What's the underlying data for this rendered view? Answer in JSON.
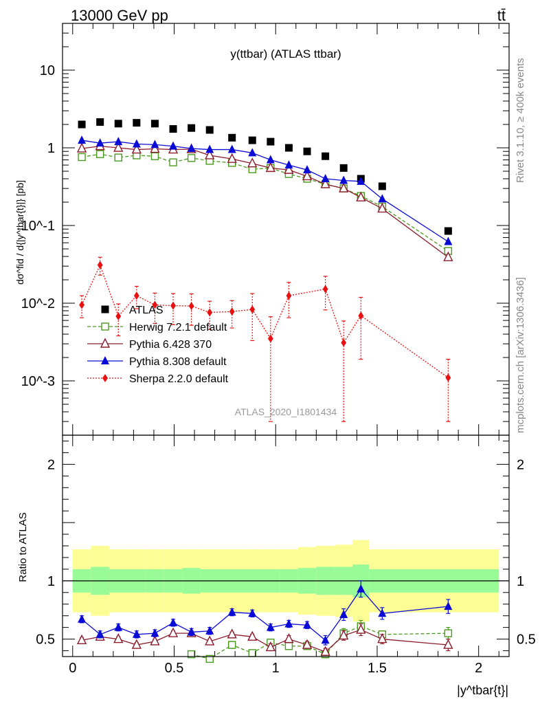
{
  "header": {
    "energy_label": "13000 GeV pp",
    "process_label": "tt̄",
    "side_text_top": "Rivet 3.1.10, ≥ 400k events",
    "side_text_bottom": "mcplots.cern.ch [arXiv:1306.3436]"
  },
  "chart_data": [
    {
      "type": "scatter",
      "panel": "main",
      "title": "y(ttbar) (ATLAS ttbar)",
      "ylabel": "dσ^fid / d{|y^tbar{t}|} [pb]",
      "xlabel": "",
      "yscale": "log",
      "ylim": [
        0.0002,
        40
      ],
      "xlim": [
        -0.05,
        2.15
      ],
      "ytick_labels": [
        "10^-3",
        "10^-2",
        "10^-1",
        "1",
        "10"
      ],
      "watermark": "ATLAS_2020_I1801434",
      "legend_placement": "lower-left",
      "series": [
        {
          "name": "ATLAS",
          "color": "#000000",
          "marker": "filled-square",
          "x": [
            0.045,
            0.135,
            0.225,
            0.315,
            0.405,
            0.495,
            0.585,
            0.675,
            0.785,
            0.885,
            0.975,
            1.065,
            1.155,
            1.245,
            1.335,
            1.42,
            1.525,
            1.85
          ],
          "y": [
            2.0,
            2.15,
            2.05,
            2.1,
            2.05,
            1.75,
            1.8,
            1.7,
            1.35,
            1.25,
            1.2,
            1.0,
            0.9,
            0.78,
            0.55,
            0.4,
            0.32,
            0.085
          ]
        },
        {
          "name": "Herwig 7.2.1 default",
          "color": "#4a9a1e",
          "marker": "open-square",
          "line": "dashed",
          "x": [
            0.045,
            0.135,
            0.225,
            0.315,
            0.405,
            0.495,
            0.585,
            0.675,
            0.785,
            0.885,
            0.975,
            1.065,
            1.155,
            1.245,
            1.335,
            1.42,
            1.525,
            1.85
          ],
          "y": [
            0.76,
            0.83,
            0.75,
            0.8,
            0.78,
            0.65,
            0.74,
            0.68,
            0.64,
            0.53,
            0.55,
            0.46,
            0.4,
            0.34,
            0.3,
            0.24,
            0.175,
            0.047
          ]
        },
        {
          "name": "Pythia 6.428 370",
          "color": "#8b1a2b",
          "marker": "open-triangle",
          "line": "solid",
          "x": [
            0.045,
            0.135,
            0.225,
            0.315,
            0.405,
            0.495,
            0.585,
            0.675,
            0.785,
            0.885,
            0.975,
            1.065,
            1.155,
            1.245,
            1.335,
            1.42,
            1.525,
            1.85
          ],
          "y": [
            0.98,
            1.05,
            1.0,
            0.95,
            0.97,
            0.95,
            0.96,
            0.8,
            0.72,
            0.63,
            0.55,
            0.52,
            0.43,
            0.34,
            0.3,
            0.23,
            0.165,
            0.039
          ]
        },
        {
          "name": "Pythia 8.308 default",
          "color": "#0a0ad6",
          "marker": "filled-triangle",
          "line": "solid",
          "x": [
            0.045,
            0.135,
            0.225,
            0.315,
            0.405,
            0.495,
            0.585,
            0.675,
            0.785,
            0.885,
            0.975,
            1.065,
            1.155,
            1.245,
            1.335,
            1.42,
            1.525,
            1.85
          ],
          "y": [
            1.25,
            1.15,
            1.2,
            1.12,
            1.1,
            1.05,
            0.98,
            0.95,
            0.95,
            0.86,
            0.7,
            0.6,
            0.52,
            0.4,
            0.38,
            0.37,
            0.22,
            0.062
          ]
        },
        {
          "name": "Sherpa 2.2.0 default",
          "color": "#e81010",
          "marker": "filled-diamond",
          "line": "dotted",
          "x": [
            0.045,
            0.135,
            0.225,
            0.315,
            0.405,
            0.495,
            0.585,
            0.675,
            0.785,
            0.885,
            0.975,
            1.065,
            1.155,
            1.245,
            1.335,
            1.42,
            1.525,
            1.85
          ],
          "y": [
            0.0095,
            0.031,
            0.0068,
            0.0125,
            0.0095,
            0.0093,
            0.0092,
            0.0076,
            0.0078,
            0.0083,
            0.0035,
            0.0125,
            null,
            0.0152,
            0.0031,
            0.0069,
            null,
            0.0011
          ],
          "err": [
            0.003,
            0.008,
            0.003,
            0.004,
            0.004,
            0.004,
            0.004,
            0.003,
            0.003,
            0.005,
            0.0032,
            0.006,
            null,
            0.007,
            0.0028,
            0.005,
            null,
            0.0008
          ]
        }
      ]
    },
    {
      "type": "scatter",
      "panel": "ratio",
      "ylabel": "Ratio to ATLAS",
      "xlabel": "|y^tbar{t}|",
      "ylim": [
        0.35,
        2.25
      ],
      "xlim": [
        -0.05,
        2.15
      ],
      "ytick_labels": [
        "0.5",
        "1",
        "2"
      ],
      "xtick_labels": [
        "0",
        "0.5",
        "1",
        "1.5",
        "2"
      ],
      "bands": {
        "edges": [
          0.0,
          0.09,
          0.18,
          0.27,
          0.36,
          0.45,
          0.54,
          0.63,
          0.72,
          0.84,
          0.93,
          1.02,
          1.11,
          1.2,
          1.29,
          1.38,
          1.46,
          1.59,
          2.1
        ],
        "inner_color": "#98fb98",
        "outer_color": "#fdfd96",
        "inner_halfwidth": [
          0.1,
          0.12,
          0.1,
          0.1,
          0.1,
          0.1,
          0.11,
          0.1,
          0.1,
          0.1,
          0.1,
          0.1,
          0.11,
          0.12,
          0.12,
          0.14,
          0.1,
          0.1
        ],
        "outer_halfwidth": [
          0.27,
          0.3,
          0.27,
          0.27,
          0.27,
          0.27,
          0.27,
          0.27,
          0.27,
          0.27,
          0.27,
          0.27,
          0.29,
          0.3,
          0.31,
          0.35,
          0.27,
          0.27
        ]
      },
      "series": [
        {
          "name": "Herwig 7.2.1 default",
          "color": "#4a9a1e",
          "marker": "open-square",
          "line": "dashed",
          "x": [
            0.585,
            0.675,
            0.785,
            0.885,
            0.975,
            1.065,
            1.155,
            1.245,
            1.335,
            1.42,
            1.525,
            1.85
          ],
          "y": [
            0.37,
            0.33,
            0.45,
            0.38,
            0.47,
            0.44,
            0.44,
            0.37,
            0.55,
            0.61,
            0.54,
            0.55
          ],
          "err": [
            0.02,
            0.02,
            0.03,
            0.02,
            0.03,
            0.03,
            0.03,
            0.03,
            0.04,
            0.05,
            0.03,
            0.05
          ]
        },
        {
          "name": "Pythia 6.428 370",
          "color": "#8b1a2b",
          "marker": "open-triangle",
          "line": "solid",
          "x": [
            0.045,
            0.135,
            0.225,
            0.315,
            0.405,
            0.495,
            0.585,
            0.675,
            0.785,
            0.885,
            0.975,
            1.065,
            1.155,
            1.245,
            1.335,
            1.42,
            1.525,
            1.85
          ],
          "y": [
            0.49,
            0.52,
            0.5,
            0.45,
            0.48,
            0.55,
            0.55,
            0.48,
            0.54,
            0.52,
            0.43,
            0.5,
            0.45,
            0.39,
            0.53,
            0.58,
            0.5,
            0.45
          ],
          "err": [
            0.02,
            0.02,
            0.02,
            0.02,
            0.02,
            0.02,
            0.02,
            0.02,
            0.02,
            0.02,
            0.03,
            0.03,
            0.03,
            0.03,
            0.04,
            0.05,
            0.04,
            0.05
          ]
        },
        {
          "name": "Pythia 8.308 default",
          "color": "#0a0ad6",
          "marker": "filled-triangle",
          "line": "solid",
          "x": [
            0.045,
            0.135,
            0.225,
            0.315,
            0.405,
            0.495,
            0.585,
            0.675,
            0.785,
            0.885,
            0.975,
            1.065,
            1.155,
            1.245,
            1.335,
            1.42,
            1.525,
            1.85
          ],
          "y": [
            0.67,
            0.54,
            0.6,
            0.54,
            0.55,
            0.64,
            0.56,
            0.57,
            0.73,
            0.72,
            0.6,
            0.63,
            0.62,
            0.49,
            0.71,
            0.93,
            0.72,
            0.78
          ],
          "err": [
            0.03,
            0.03,
            0.03,
            0.03,
            0.03,
            0.03,
            0.03,
            0.03,
            0.03,
            0.03,
            0.03,
            0.03,
            0.03,
            0.04,
            0.05,
            0.07,
            0.05,
            0.06
          ]
        }
      ]
    }
  ]
}
